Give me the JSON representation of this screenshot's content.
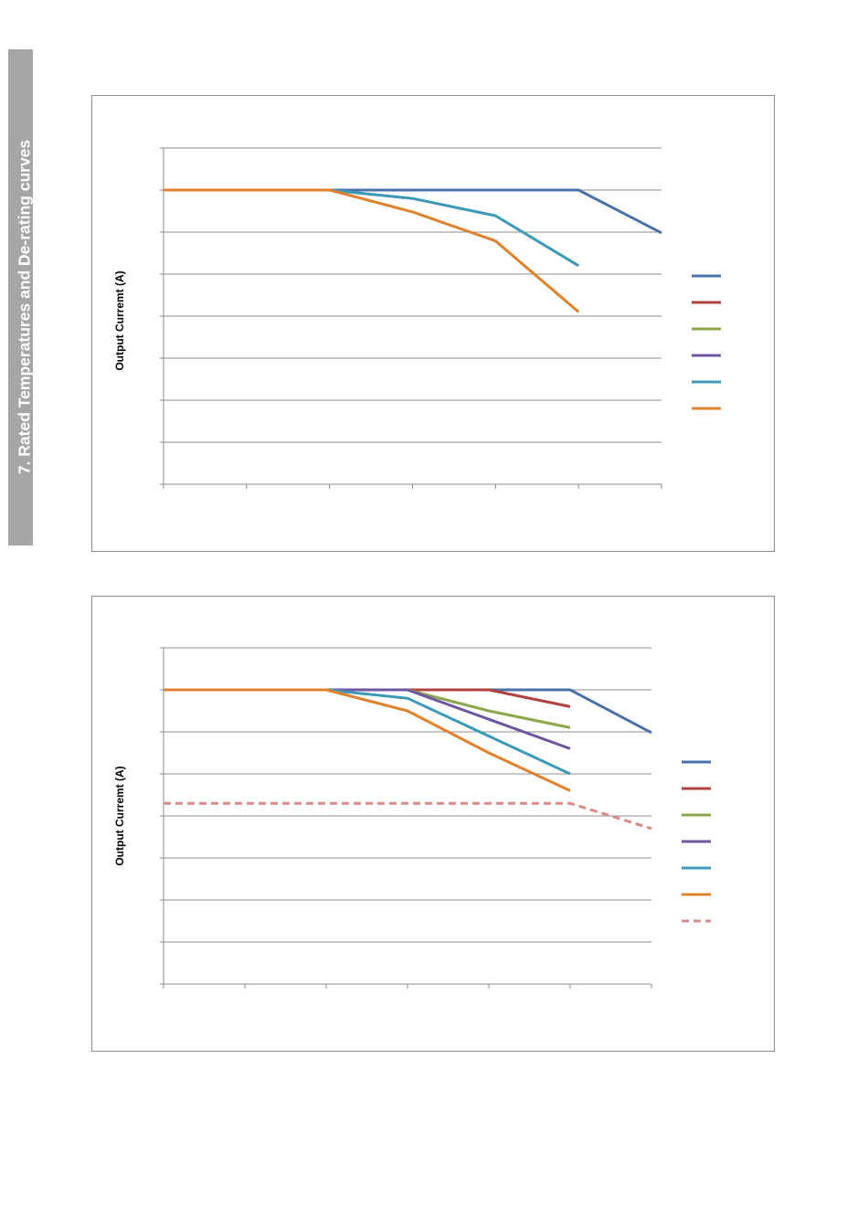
{
  "section_title": "7. Rated Temperatures and De-rating curves",
  "chart_data": [
    {
      "type": "line",
      "title": "",
      "xlabel": "",
      "ylabel": "Output Curremt (A)",
      "grid": true,
      "legend_position": "right",
      "y_gridline_count": 9,
      "x_tick_count": 7,
      "y_range": [
        0,
        8
      ],
      "x_range": [
        0,
        6
      ],
      "series": [
        {
          "color": "#4a72a8",
          "style": "solid",
          "points": [
            [
              0,
              7
            ],
            [
              1,
              7
            ],
            [
              2,
              7
            ],
            [
              3,
              7
            ],
            [
              4,
              7
            ],
            [
              5,
              7
            ],
            [
              6,
              5.98
            ]
          ]
        },
        {
          "color": "#b0413e",
          "style": "solid",
          "points": []
        },
        {
          "color": "#8ca64a",
          "style": "solid",
          "points": []
        },
        {
          "color": "#6e55a0",
          "style": "solid",
          "points": []
        },
        {
          "color": "#3d99b8",
          "style": "solid",
          "points": [
            [
              0,
              7
            ],
            [
              1,
              7
            ],
            [
              2,
              7
            ],
            [
              3,
              6.8
            ],
            [
              4,
              6.39
            ],
            [
              5,
              5.2
            ]
          ]
        },
        {
          "color": "#e0812e",
          "style": "solid",
          "points": [
            [
              0,
              7
            ],
            [
              1,
              7
            ],
            [
              2,
              7
            ],
            [
              3,
              6.48
            ],
            [
              4,
              5.79
            ],
            [
              5,
              4.1
            ]
          ]
        }
      ]
    },
    {
      "type": "line",
      "title": "",
      "xlabel": "",
      "ylabel": "Output Curremt (A)",
      "grid": true,
      "legend_position": "right",
      "y_gridline_count": 9,
      "x_tick_count": 7,
      "y_range": [
        0,
        8
      ],
      "x_range": [
        0,
        6
      ],
      "series": [
        {
          "color": "#4a72a8",
          "style": "solid",
          "points": [
            [
              0,
              7
            ],
            [
              1,
              7
            ],
            [
              2,
              7
            ],
            [
              3,
              7
            ],
            [
              4,
              7
            ],
            [
              5,
              7
            ],
            [
              6,
              5.98
            ]
          ]
        },
        {
          "color": "#b0413e",
          "style": "solid",
          "points": [
            [
              0,
              7
            ],
            [
              1,
              7
            ],
            [
              2,
              7
            ],
            [
              3,
              7
            ],
            [
              4,
              7
            ],
            [
              5,
              6.6
            ]
          ]
        },
        {
          "color": "#8ca64a",
          "style": "solid",
          "points": [
            [
              0,
              7
            ],
            [
              1,
              7
            ],
            [
              2,
              7
            ],
            [
              3,
              7
            ],
            [
              4,
              6.5
            ],
            [
              5,
              6.1
            ]
          ]
        },
        {
          "color": "#6e55a0",
          "style": "solid",
          "points": [
            [
              0,
              7
            ],
            [
              1,
              7
            ],
            [
              2,
              7
            ],
            [
              3,
              7
            ],
            [
              4,
              6.3
            ],
            [
              5,
              5.6
            ]
          ]
        },
        {
          "color": "#3d99b8",
          "style": "solid",
          "points": [
            [
              0,
              7
            ],
            [
              1,
              7
            ],
            [
              2,
              7
            ],
            [
              3,
              6.8
            ],
            [
              4,
              5.9
            ],
            [
              5,
              5
            ]
          ]
        },
        {
          "color": "#e0812e",
          "style": "solid",
          "points": [
            [
              0,
              7
            ],
            [
              1,
              7
            ],
            [
              2,
              7
            ],
            [
              3,
              6.5
            ],
            [
              4,
              5.5
            ],
            [
              5,
              4.6
            ]
          ]
        },
        {
          "color": "#d98c8c",
          "style": "dashed",
          "points": [
            [
              0,
              4.3
            ],
            [
              1,
              4.3
            ],
            [
              2,
              4.3
            ],
            [
              3,
              4.3
            ],
            [
              4,
              4.3
            ],
            [
              5,
              4.3
            ],
            [
              6,
              3.7
            ]
          ]
        }
      ]
    }
  ]
}
